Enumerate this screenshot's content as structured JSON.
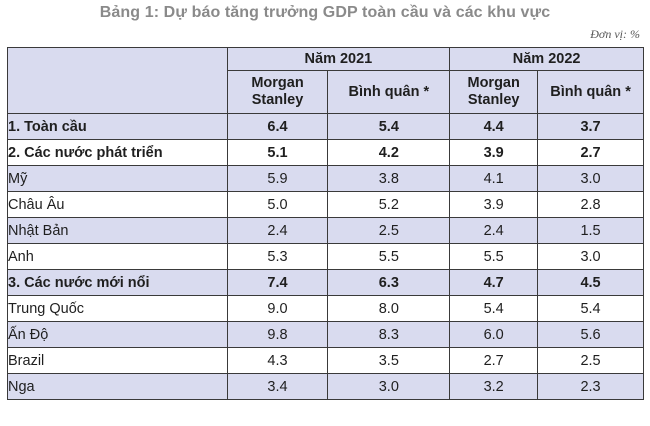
{
  "title": "Bảng 1: Dự báo tăng trưởng GDP toàn cầu và các khu vực",
  "unit": "Đơn vị: %",
  "header": {
    "year_2021": "Năm 2021",
    "year_2022": "Năm 2022",
    "col_ms_line1": "Morgan",
    "col_ms_line2": "Stanley",
    "col_avg": "Bình quân *"
  },
  "rows": [
    {
      "name": "1. Toàn cầu",
      "ms2021": "6.4",
      "avg2021": "5.4",
      "ms2022": "4.4",
      "avg2022": "3.7",
      "bold": true,
      "shaded": true
    },
    {
      "name": "2. Các nước phát triển",
      "ms2021": "5.1",
      "avg2021": "4.2",
      "ms2022": "3.9",
      "avg2022": "2.7",
      "bold": true,
      "shaded": false
    },
    {
      "name": "Mỹ",
      "ms2021": "5.9",
      "avg2021": "3.8",
      "ms2022": "4.1",
      "avg2022": "3.0",
      "bold": false,
      "shaded": true
    },
    {
      "name": "Châu Âu",
      "ms2021": "5.0",
      "avg2021": "5.2",
      "ms2022": "3.9",
      "avg2022": "2.8",
      "bold": false,
      "shaded": false
    },
    {
      "name": "Nhật Bản",
      "ms2021": "2.4",
      "avg2021": "2.5",
      "ms2022": "2.4",
      "avg2022": "1.5",
      "bold": false,
      "shaded": true
    },
    {
      "name": "Anh",
      "ms2021": "5.3",
      "avg2021": "5.5",
      "ms2022": "5.5",
      "avg2022": "3.0",
      "bold": false,
      "shaded": false
    },
    {
      "name": "3. Các nước mới nổi",
      "ms2021": "7.4",
      "avg2021": "6.3",
      "ms2022": "4.7",
      "avg2022": "4.5",
      "bold": true,
      "shaded": true
    },
    {
      "name": "Trung Quốc",
      "ms2021": "9.0",
      "avg2021": "8.0",
      "ms2022": "5.4",
      "avg2022": "5.4",
      "bold": false,
      "shaded": false
    },
    {
      "name": "Ấn Độ",
      "ms2021": "9.8",
      "avg2021": "8.3",
      "ms2022": "6.0",
      "avg2022": "5.6",
      "bold": false,
      "shaded": true
    },
    {
      "name": "Brazil",
      "ms2021": "4.3",
      "avg2021": "3.5",
      "ms2022": "2.7",
      "avg2022": "2.5",
      "bold": false,
      "shaded": false
    },
    {
      "name": "Nga",
      "ms2021": "3.4",
      "avg2021": "3.0",
      "ms2022": "3.2",
      "avg2022": "2.3",
      "bold": false,
      "shaded": true
    }
  ]
}
